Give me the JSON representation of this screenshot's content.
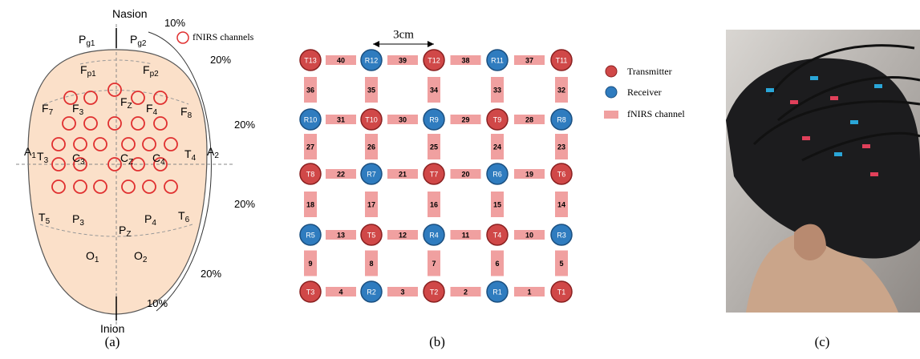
{
  "panel_a": {
    "labels": [
      {
        "text": "Nasion"
      },
      {
        "text": "10%"
      },
      {
        "text": "P",
        "sub": "g1"
      },
      {
        "text": "P",
        "sub": "g2"
      },
      {
        "text": "F",
        "sub": "p1"
      },
      {
        "text": "F",
        "sub": "p2"
      },
      {
        "text": "20%"
      },
      {
        "text": "F",
        "sub": "7"
      },
      {
        "text": "F",
        "sub": "3"
      },
      {
        "text": "F",
        "sub": "Z"
      },
      {
        "text": "F",
        "sub": "4"
      },
      {
        "text": "F",
        "sub": "8"
      },
      {
        "text": "20%"
      },
      {
        "text": "A",
        "sub": "1"
      },
      {
        "text": "T",
        "sub": "3"
      },
      {
        "text": "C",
        "sub": "3"
      },
      {
        "text": "C",
        "sub": "Z"
      },
      {
        "text": "C",
        "sub": "4"
      },
      {
        "text": "T",
        "sub": "4"
      },
      {
        "text": "A",
        "sub": "2"
      },
      {
        "text": "20%"
      },
      {
        "text": "T",
        "sub": "5"
      },
      {
        "text": "P",
        "sub": "3"
      },
      {
        "text": "P",
        "sub": "Z"
      },
      {
        "text": "P",
        "sub": "4"
      },
      {
        "text": "T",
        "sub": "6"
      },
      {
        "text": "20%"
      },
      {
        "text": "O",
        "sub": "1"
      },
      {
        "text": "O",
        "sub": "2"
      },
      {
        "text": "Inion"
      },
      {
        "text": "10%"
      }
    ],
    "legend": "fNIRS channels",
    "caption": "(a)"
  },
  "panel_b": {
    "spacing": "3cm",
    "grid": [
      [
        "T13",
        "R12",
        "T12",
        "R11",
        "T11"
      ],
      [
        "R10",
        "T10",
        "R9",
        "T9",
        "R8"
      ],
      [
        "T8",
        "R7",
        "T7",
        "R6",
        "T6"
      ],
      [
        "R5",
        "T5",
        "R4",
        "T4",
        "R3"
      ],
      [
        "T3",
        "R2",
        "T2",
        "R1",
        "T1"
      ]
    ],
    "horizontal_channels": [
      [
        40,
        39,
        38,
        37
      ],
      [
        31,
        30,
        29,
        28
      ],
      [
        22,
        21,
        20,
        19
      ],
      [
        13,
        12,
        11,
        10
      ],
      [
        4,
        3,
        2,
        1
      ]
    ],
    "vertical_channels": [
      [
        36,
        35,
        34,
        33,
        32
      ],
      [
        27,
        26,
        25,
        24,
        23
      ],
      [
        18,
        17,
        16,
        15,
        14
      ],
      [
        9,
        8,
        7,
        6,
        5
      ]
    ],
    "legend": [
      "Transmitter",
      "Receiver",
      "fNIRS channel"
    ],
    "caption": "(b)"
  },
  "panel_c": {
    "caption": "(c)"
  }
}
